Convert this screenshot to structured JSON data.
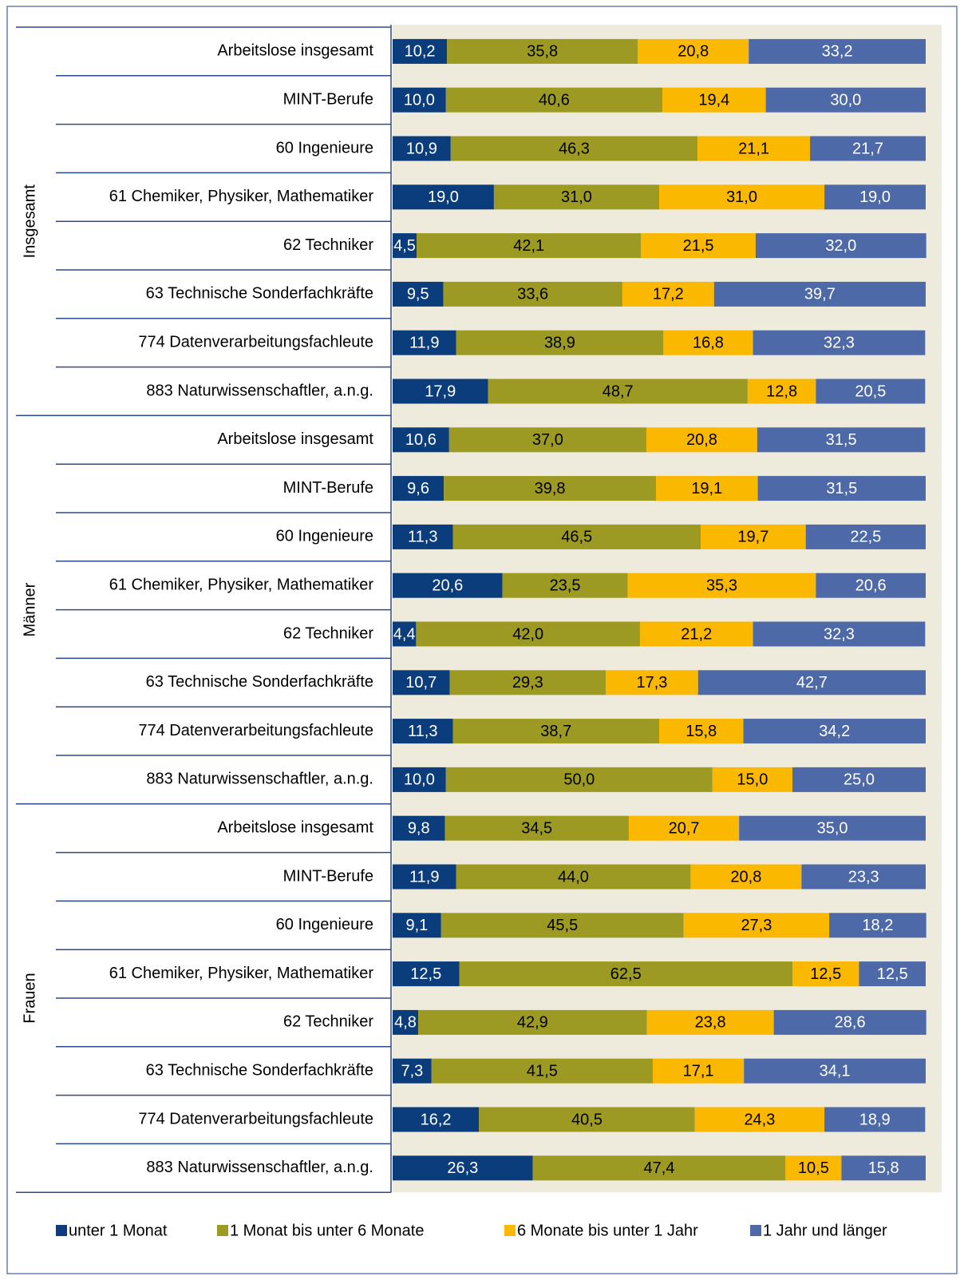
{
  "chart_data": {
    "type": "bar",
    "orientation": "horizontal",
    "stacked": true,
    "groups": [
      {
        "name": "Insgesamt",
        "categories": [
          "Arbeitslose insgesamt",
          "MINT-Berufe",
          "60 Ingenieure",
          "61 Chemiker, Physiker, Mathematiker",
          "62 Techniker",
          "63 Technische Sonderfachkräfte",
          "774 Datenverarbeitungsfachleute",
          "883 Naturwissenschaftler, a.n.g."
        ]
      },
      {
        "name": "Männer",
        "categories": [
          "Arbeitslose insgesamt",
          "MINT-Berufe",
          "60 Ingenieure",
          "61 Chemiker, Physiker, Mathematiker",
          "62 Techniker",
          "63 Technische Sonderfachkräfte",
          "774 Datenverarbeitungsfachleute",
          "883 Naturwissenschaftler, a.n.g."
        ]
      },
      {
        "name": "Frauen",
        "categories": [
          "Arbeitslose insgesamt",
          "MINT-Berufe",
          "60 Ingenieure",
          "61 Chemiker, Physiker, Mathematiker",
          "62 Techniker",
          "63 Technische Sonderfachkräfte",
          "774 Datenverarbeitungsfachleute",
          "883 Naturwissenschaftler, a.n.g."
        ]
      }
    ],
    "xlim": [
      0,
      100
    ],
    "series": [
      {
        "name": "unter 1 Monat",
        "color": "#0b3d7c",
        "label_color": "#ffffff",
        "values": [
          10.2,
          10.0,
          10.9,
          19.0,
          4.5,
          9.5,
          11.9,
          17.9,
          10.6,
          9.6,
          11.3,
          20.6,
          4.4,
          10.7,
          11.3,
          10.0,
          9.8,
          11.9,
          9.1,
          12.5,
          4.8,
          7.3,
          16.2,
          26.3
        ],
        "value_labels": [
          "10,2",
          "10,0",
          "10,9",
          "19,0",
          "4,5",
          "9,5",
          "11,9",
          "17,9",
          "10,6",
          "9,6",
          "11,3",
          "20,6",
          "4,4",
          "10,7",
          "11,3",
          "10,0",
          "9,8",
          "11,9",
          "9,1",
          "12,5",
          "4,8",
          "7,3",
          "16,2",
          "26,3"
        ]
      },
      {
        "name": "1 Monat bis unter 6 Monate",
        "color": "#9c9a23",
        "label_color": "#000000",
        "values": [
          35.8,
          40.6,
          46.3,
          31.0,
          42.1,
          33.6,
          38.9,
          48.7,
          37.0,
          39.8,
          46.5,
          23.5,
          42.0,
          29.3,
          38.7,
          50.0,
          34.5,
          44.0,
          45.5,
          62.5,
          42.9,
          41.5,
          40.5,
          47.4
        ],
        "value_labels": [
          "35,8",
          "40,6",
          "46,3",
          "31,0",
          "42,1",
          "33,6",
          "38,9",
          "48,7",
          "37,0",
          "39,8",
          "46,5",
          "23,5",
          "42,0",
          "29,3",
          "38,7",
          "50,0",
          "34,5",
          "44,0",
          "45,5",
          "62,5",
          "42,9",
          "41,5",
          "40,5",
          "47,4"
        ]
      },
      {
        "name": "6 Monate bis unter 1 Jahr",
        "color": "#fbb800",
        "label_color": "#000000",
        "values": [
          20.8,
          19.4,
          21.1,
          31.0,
          21.5,
          17.2,
          16.8,
          12.8,
          20.8,
          19.1,
          19.7,
          35.3,
          21.2,
          17.3,
          15.8,
          15.0,
          20.7,
          20.8,
          27.3,
          12.5,
          23.8,
          17.1,
          24.3,
          10.5
        ],
        "value_labels": [
          "20,8",
          "19,4",
          "21,1",
          "31,0",
          "21,5",
          "17,2",
          "16,8",
          "12,8",
          "20,8",
          "19,1",
          "19,7",
          "35,3",
          "21,2",
          "17,3",
          "15,8",
          "15,0",
          "20,7",
          "20,8",
          "27,3",
          "12,5",
          "23,8",
          "17,1",
          "24,3",
          "10,5"
        ]
      },
      {
        "name": "1 Jahr und länger",
        "color": "#4e69a7",
        "label_color": "#ffffff",
        "values": [
          33.2,
          30.0,
          21.7,
          19.0,
          32.0,
          39.7,
          32.3,
          20.5,
          31.5,
          31.5,
          22.5,
          20.6,
          32.3,
          42.7,
          34.2,
          25.0,
          35.0,
          23.3,
          18.2,
          12.5,
          28.6,
          34.1,
          18.9,
          15.8
        ],
        "value_labels": [
          "33,2",
          "30,0",
          "21,7",
          "19,0",
          "32,0",
          "39,7",
          "32,3",
          "20,5",
          "31,5",
          "31,5",
          "22,5",
          "20,6",
          "32,3",
          "42,7",
          "34,2",
          "25,0",
          "35,0",
          "23,3",
          "18,2",
          "12,5",
          "28,6",
          "34,1",
          "18,9",
          "15,8"
        ]
      }
    ]
  }
}
